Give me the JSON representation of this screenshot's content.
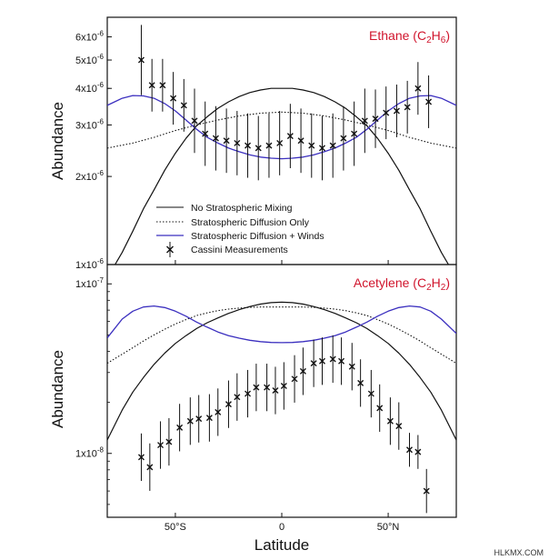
{
  "colors": {
    "title": "#d0142c",
    "winds": "#3b2fbf",
    "line": "#111111"
  },
  "watermark": "HLKMX.COM",
  "chart_data": [
    {
      "type": "line",
      "title": "Ethane (C2H6)",
      "title_main": "Ethane (C",
      "title_sub1": "2",
      "title_mid": "H",
      "title_sub2": "6",
      "title_end": ")",
      "ylabel": "Abundance",
      "xlabel": "",
      "xlim": [
        -82,
        82
      ],
      "ylim": [
        1e-06,
        7e-06
      ],
      "yscale": "log",
      "y_ticks": [
        {
          "v": 1e-06,
          "m": "1x10",
          "e": "-6"
        },
        {
          "v": 2e-06,
          "m": "2x10",
          "e": "-6"
        },
        {
          "v": 3e-06,
          "m": "3x10",
          "e": "-6"
        },
        {
          "v": 4e-06,
          "m": "4x10",
          "e": "-6"
        },
        {
          "v": 5e-06,
          "m": "5x10",
          "e": "-6"
        },
        {
          "v": 6e-06,
          "m": "6x10",
          "e": "-6"
        }
      ],
      "legend": [
        {
          "label": "No Stratospheric Mixing",
          "style": "solid"
        },
        {
          "label": "Stratospheric Diffusion Only",
          "style": "dotted"
        },
        {
          "label": "Stratospheric Diffusion + Winds",
          "style": "winds"
        },
        {
          "label": "Cassini Measurements",
          "style": "marker"
        }
      ],
      "series": [
        {
          "key": "no_mixing",
          "style": "solid",
          "x": [
            -82,
            -75,
            -70,
            -65,
            -60,
            -55,
            -50,
            -45,
            -40,
            -35,
            -30,
            -25,
            -20,
            -15,
            -10,
            -5,
            0,
            5,
            10,
            15,
            20,
            25,
            30,
            35,
            40,
            45,
            50,
            55,
            60,
            65,
            70,
            75,
            82
          ],
          "y": [
            9e-07,
            1.1e-06,
            1.3e-06,
            1.55e-06,
            1.8e-06,
            2.1e-06,
            2.4e-06,
            2.7e-06,
            2.98e-06,
            3.2e-06,
            3.42e-06,
            3.6e-06,
            3.75e-06,
            3.87e-06,
            3.95e-06,
            4e-06,
            4e-06,
            4e-06,
            3.95e-06,
            3.87e-06,
            3.75e-06,
            3.6e-06,
            3.42e-06,
            3.2e-06,
            2.98e-06,
            2.7e-06,
            2.4e-06,
            2.1e-06,
            1.8e-06,
            1.55e-06,
            1.3e-06,
            1.1e-06,
            9e-07
          ]
        },
        {
          "key": "diffusion_only",
          "style": "dotted",
          "x": [
            -82,
            -70,
            -60,
            -50,
            -40,
            -30,
            -20,
            -10,
            0,
            10,
            20,
            30,
            40,
            50,
            60,
            70,
            82
          ],
          "y": [
            2.5e-06,
            2.6e-06,
            2.72e-06,
            2.87e-06,
            3e-06,
            3.12e-06,
            3.22e-06,
            3.29e-06,
            3.32e-06,
            3.29e-06,
            3.22e-06,
            3.12e-06,
            3e-06,
            2.87e-06,
            2.72e-06,
            2.6e-06,
            2.5e-06
          ]
        },
        {
          "key": "diffusion_winds",
          "style": "winds",
          "x": [
            -82,
            -75,
            -70,
            -65,
            -60,
            -55,
            -50,
            -45,
            -40,
            -35,
            -30,
            -25,
            -20,
            -15,
            -10,
            -5,
            0,
            5,
            10,
            15,
            20,
            25,
            30,
            35,
            40,
            45,
            50,
            55,
            60,
            65,
            70,
            75,
            82
          ],
          "y": [
            3.5e-06,
            3.7e-06,
            3.78e-06,
            3.77e-06,
            3.7e-06,
            3.55e-06,
            3.35e-06,
            3.12e-06,
            2.9e-06,
            2.72e-06,
            2.6e-06,
            2.5e-06,
            2.43e-06,
            2.37e-06,
            2.33e-06,
            2.31e-06,
            2.3e-06,
            2.31e-06,
            2.33e-06,
            2.37e-06,
            2.43e-06,
            2.5e-06,
            2.6e-06,
            2.72e-06,
            2.9e-06,
            3.12e-06,
            3.35e-06,
            3.55e-06,
            3.7e-06,
            3.77e-06,
            3.78e-06,
            3.7e-06,
            3.5e-06
          ]
        }
      ],
      "measurements": {
        "x": [
          -66,
          -61,
          -56,
          -51,
          -46,
          -41,
          -36,
          -31,
          -26,
          -21,
          -16,
          -11,
          -6,
          -1,
          4,
          9,
          14,
          19,
          24,
          29,
          34,
          39,
          44,
          49,
          54,
          59,
          64,
          69
        ],
        "y": [
          5e-06,
          4.1e-06,
          4.1e-06,
          3.7e-06,
          3.5e-06,
          3.1e-06,
          2.8e-06,
          2.7e-06,
          2.65e-06,
          2.6e-06,
          2.55e-06,
          2.5e-06,
          2.55e-06,
          2.6e-06,
          2.75e-06,
          2.65e-06,
          2.55e-06,
          2.5e-06,
          2.55e-06,
          2.7e-06,
          2.8e-06,
          3.1e-06,
          3.15e-06,
          3.3e-06,
          3.35e-06,
          3.45e-06,
          4e-06,
          3.6e-06
        ],
        "err": [
          0.12,
          0.09,
          0.09,
          0.09,
          0.09,
          0.11,
          0.11,
          0.11,
          0.11,
          0.11,
          0.11,
          0.11,
          0.11,
          0.11,
          0.11,
          0.11,
          0.11,
          0.11,
          0.11,
          0.11,
          0.11,
          0.11,
          0.1,
          0.09,
          0.09,
          0.09,
          0.09,
          0.09
        ]
      }
    },
    {
      "type": "line",
      "title": "Acetylene (C2H2)",
      "title_main": "Acetylene (C",
      "title_sub1": "2",
      "title_mid": "H",
      "title_sub2": "2",
      "title_end": ")",
      "ylabel": "Abundance",
      "xlabel": "Latitude",
      "xlim": [
        -82,
        82
      ],
      "ylim": [
        4.2e-09,
        1.3e-07
      ],
      "yscale": "log",
      "y_ticks": [
        {
          "v": 1e-08,
          "m": "1x10",
          "e": "-8"
        },
        {
          "v": 1e-07,
          "m": "1x10",
          "e": "-7"
        }
      ],
      "x_ticks": [
        {
          "v": -50,
          "label": "50°S"
        },
        {
          "v": 0,
          "label": "0"
        },
        {
          "v": 50,
          "label": "50°N"
        }
      ],
      "series": [
        {
          "key": "no_mixing",
          "style": "solid",
          "x": [
            -82,
            -75,
            -70,
            -65,
            -60,
            -55,
            -50,
            -45,
            -40,
            -35,
            -30,
            -25,
            -20,
            -15,
            -10,
            -5,
            0,
            5,
            10,
            15,
            20,
            25,
            30,
            35,
            40,
            45,
            50,
            55,
            60,
            65,
            70,
            75,
            82
          ],
          "y": [
            1.2e-08,
            1.8e-08,
            2.3e-08,
            2.8e-08,
            3.35e-08,
            3.9e-08,
            4.45e-08,
            4.95e-08,
            5.45e-08,
            5.9e-08,
            6.3e-08,
            6.7e-08,
            7.05e-08,
            7.35e-08,
            7.6e-08,
            7.75e-08,
            7.8e-08,
            7.75e-08,
            7.6e-08,
            7.35e-08,
            7.05e-08,
            6.7e-08,
            6.3e-08,
            5.9e-08,
            5.45e-08,
            4.95e-08,
            4.45e-08,
            3.9e-08,
            3.35e-08,
            2.8e-08,
            2.3e-08,
            1.8e-08,
            1.2e-08
          ]
        },
        {
          "key": "diffusion_only",
          "style": "dotted",
          "x": [
            -82,
            -75,
            -70,
            -65,
            -60,
            -55,
            -50,
            -45,
            -40,
            -35,
            -30,
            -25,
            -20,
            -15,
            -10,
            -5,
            0,
            5,
            10,
            15,
            20,
            25,
            30,
            35,
            40,
            45,
            50,
            55,
            60,
            65,
            70,
            75,
            82
          ],
          "y": [
            3.4e-08,
            3.85e-08,
            4.2e-08,
            4.6e-08,
            5e-08,
            5.4e-08,
            5.8e-08,
            6.15e-08,
            6.5e-08,
            6.75e-08,
            6.95e-08,
            7.1e-08,
            7.2e-08,
            7.27e-08,
            7.3e-08,
            7.3e-08,
            7.3e-08,
            7.3e-08,
            7.3e-08,
            7.27e-08,
            7.2e-08,
            7.1e-08,
            6.95e-08,
            6.75e-08,
            6.5e-08,
            6.15e-08,
            5.8e-08,
            5.4e-08,
            5e-08,
            4.6e-08,
            4.2e-08,
            3.85e-08,
            3.4e-08
          ]
        },
        {
          "key": "diffusion_winds",
          "style": "winds",
          "x": [
            -82,
            -75,
            -70,
            -65,
            -60,
            -55,
            -50,
            -45,
            -40,
            -35,
            -30,
            -25,
            -20,
            -15,
            -10,
            -5,
            0,
            5,
            10,
            15,
            20,
            25,
            30,
            35,
            40,
            45,
            50,
            55,
            60,
            65,
            70,
            75,
            82
          ],
          "y": [
            4.8e-08,
            6.2e-08,
            6.9e-08,
            7.3e-08,
            7.4e-08,
            7.25e-08,
            6.9e-08,
            6.45e-08,
            5.95e-08,
            5.55e-08,
            5.2e-08,
            4.95e-08,
            4.78e-08,
            4.65e-08,
            4.56e-08,
            4.51e-08,
            4.5e-08,
            4.51e-08,
            4.56e-08,
            4.65e-08,
            4.78e-08,
            4.95e-08,
            5.2e-08,
            5.55e-08,
            5.95e-08,
            6.45e-08,
            6.9e-08,
            7.25e-08,
            7.4e-08,
            7.3e-08,
            6.9e-08,
            6.2e-08,
            5.1e-08
          ]
        }
      ],
      "measurements": {
        "x": [
          -66,
          -62,
          -57,
          -53,
          -48,
          -43,
          -39,
          -34,
          -30,
          -25,
          -21,
          -16,
          -12,
          -7,
          -3,
          1,
          6,
          10,
          15,
          19,
          24,
          28,
          33,
          37,
          42,
          46,
          51,
          55,
          60,
          64,
          68
        ],
        "y": [
          9.5e-09,
          8.3e-09,
          1.12e-08,
          1.17e-08,
          1.42e-08,
          1.55e-08,
          1.6e-08,
          1.62e-08,
          1.75e-08,
          1.95e-08,
          2.15e-08,
          2.25e-08,
          2.45e-08,
          2.45e-08,
          2.35e-08,
          2.5e-08,
          2.75e-08,
          3.05e-08,
          3.4e-08,
          3.5e-08,
          3.6e-08,
          3.5e-08,
          3.25e-08,
          2.6e-08,
          2.25e-08,
          1.85e-08,
          1.55e-08,
          1.45e-08,
          1.05e-08,
          1.02e-08,
          6e-09
        ],
        "err": [
          0.14,
          0.14,
          0.14,
          0.14,
          0.14,
          0.14,
          0.14,
          0.14,
          0.14,
          0.14,
          0.14,
          0.14,
          0.14,
          0.14,
          0.14,
          0.14,
          0.14,
          0.14,
          0.14,
          0.14,
          0.14,
          0.14,
          0.14,
          0.14,
          0.14,
          0.14,
          0.14,
          0.14,
          0.1,
          0.1,
          0.13
        ]
      }
    }
  ]
}
